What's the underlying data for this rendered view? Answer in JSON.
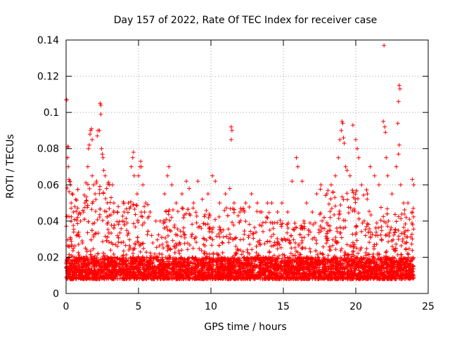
{
  "chart_data": {
    "type": "scatter",
    "title": "Day 157 of 2022, Rate Of TEC Index for receiver case",
    "xlabel": "GPS time / hours",
    "ylabel": "ROTI / TECUs",
    "xlim": [
      0,
      25
    ],
    "ylim": [
      0,
      0.14
    ],
    "xticks": [
      {
        "value": 0,
        "label": "0"
      },
      {
        "value": 5,
        "label": "5"
      },
      {
        "value": 10,
        "label": "10"
      },
      {
        "value": 15,
        "label": "15"
      },
      {
        "value": 20,
        "label": "20"
      },
      {
        "value": 25,
        "label": "25"
      }
    ],
    "yticks": [
      {
        "value": 0,
        "label": "0"
      },
      {
        "value": 0.02,
        "label": "0.02"
      },
      {
        "value": 0.04,
        "label": "0.04"
      },
      {
        "value": 0.06,
        "label": "0.06"
      },
      {
        "value": 0.08,
        "label": "0.08"
      },
      {
        "value": 0.1,
        "label": "0.1"
      },
      {
        "value": 0.12,
        "label": "0.12"
      },
      {
        "value": 0.14,
        "label": "0.14"
      }
    ],
    "grid": true,
    "marker": "+",
    "color": "#ff0000",
    "series": [
      {
        "name": "ROTI",
        "points": [
          [
            0.0,
            0.107
          ],
          [
            0.05,
            0.107
          ],
          [
            0.1,
            0.081
          ],
          [
            0.15,
            0.081
          ],
          [
            0.1,
            0.075
          ],
          [
            0.15,
            0.07
          ],
          [
            0.2,
            0.063
          ],
          [
            0.25,
            0.062
          ],
          [
            0.3,
            0.06
          ],
          [
            0.35,
            0.05
          ],
          [
            0.4,
            0.055
          ],
          [
            0.5,
            0.045
          ],
          [
            0.6,
            0.048
          ],
          [
            0.8,
            0.042
          ],
          [
            1.0,
            0.04
          ],
          [
            1.2,
            0.045
          ],
          [
            1.3,
            0.05
          ],
          [
            1.5,
            0.07
          ],
          [
            1.55,
            0.08
          ],
          [
            1.6,
            0.082
          ],
          [
            1.65,
            0.088
          ],
          [
            1.7,
            0.09
          ],
          [
            1.75,
            0.091
          ],
          [
            1.8,
            0.085
          ],
          [
            1.8,
            0.065
          ],
          [
            1.9,
            0.06
          ],
          [
            2.0,
            0.055
          ],
          [
            2.1,
            0.062
          ],
          [
            2.15,
            0.087
          ],
          [
            2.2,
            0.09
          ],
          [
            2.3,
            0.09
          ],
          [
            2.35,
            0.105
          ],
          [
            2.4,
            0.104
          ],
          [
            2.4,
            0.099
          ],
          [
            2.45,
            0.08
          ],
          [
            2.5,
            0.077
          ],
          [
            2.55,
            0.075
          ],
          [
            2.6,
            0.068
          ],
          [
            2.7,
            0.065
          ],
          [
            2.8,
            0.058
          ],
          [
            3.0,
            0.06
          ],
          [
            3.2,
            0.06
          ],
          [
            3.3,
            0.05
          ],
          [
            3.6,
            0.048
          ],
          [
            4.0,
            0.045
          ],
          [
            4.3,
            0.05
          ],
          [
            4.5,
            0.07
          ],
          [
            4.6,
            0.075
          ],
          [
            4.65,
            0.078
          ],
          [
            4.7,
            0.065
          ],
          [
            4.9,
            0.055
          ],
          [
            5.0,
            0.065
          ],
          [
            5.1,
            0.07
          ],
          [
            5.15,
            0.073
          ],
          [
            5.2,
            0.07
          ],
          [
            5.3,
            0.06
          ],
          [
            5.5,
            0.05
          ],
          [
            5.8,
            0.045
          ],
          [
            6.2,
            0.04
          ],
          [
            6.5,
            0.04
          ],
          [
            6.8,
            0.055
          ],
          [
            7.0,
            0.065
          ],
          [
            7.1,
            0.07
          ],
          [
            7.3,
            0.06
          ],
          [
            7.6,
            0.05
          ],
          [
            8.0,
            0.055
          ],
          [
            8.3,
            0.062
          ],
          [
            8.5,
            0.058
          ],
          [
            8.8,
            0.05
          ],
          [
            9.1,
            0.062
          ],
          [
            9.4,
            0.052
          ],
          [
            9.8,
            0.055
          ],
          [
            10.1,
            0.065
          ],
          [
            10.3,
            0.062
          ],
          [
            10.6,
            0.05
          ],
          [
            11.0,
            0.055
          ],
          [
            11.3,
            0.058
          ],
          [
            11.4,
            0.092
          ],
          [
            11.45,
            0.09
          ],
          [
            11.4,
            0.085
          ],
          [
            11.6,
            0.05
          ],
          [
            12.0,
            0.045
          ],
          [
            12.4,
            0.05
          ],
          [
            12.8,
            0.055
          ],
          [
            13.2,
            0.05
          ],
          [
            13.5,
            0.045
          ],
          [
            13.9,
            0.05
          ],
          [
            14.2,
            0.05
          ],
          [
            14.6,
            0.045
          ],
          [
            14.9,
            0.05
          ],
          [
            15.3,
            0.045
          ],
          [
            15.6,
            0.062
          ],
          [
            15.9,
            0.075
          ],
          [
            16.0,
            0.07
          ],
          [
            16.3,
            0.062
          ],
          [
            16.6,
            0.05
          ],
          [
            17.0,
            0.045
          ],
          [
            17.3,
            0.055
          ],
          [
            17.6,
            0.06
          ],
          [
            18.0,
            0.055
          ],
          [
            18.3,
            0.06
          ],
          [
            18.6,
            0.065
          ],
          [
            18.8,
            0.075
          ],
          [
            18.9,
            0.085
          ],
          [
            19.0,
            0.09
          ],
          [
            19.05,
            0.095
          ],
          [
            19.1,
            0.094
          ],
          [
            19.15,
            0.086
          ],
          [
            19.2,
            0.083
          ],
          [
            19.3,
            0.07
          ],
          [
            19.4,
            0.068
          ],
          [
            19.6,
            0.065
          ],
          [
            19.8,
            0.093
          ],
          [
            20.0,
            0.085
          ],
          [
            20.1,
            0.08
          ],
          [
            20.2,
            0.075
          ],
          [
            20.4,
            0.06
          ],
          [
            20.8,
            0.055
          ],
          [
            21.0,
            0.07
          ],
          [
            21.3,
            0.065
          ],
          [
            21.6,
            0.06
          ],
          [
            21.9,
            0.095
          ],
          [
            21.95,
            0.137
          ],
          [
            22.0,
            0.092
          ],
          [
            22.05,
            0.089
          ],
          [
            22.1,
            0.075
          ],
          [
            22.2,
            0.065
          ],
          [
            22.5,
            0.055
          ],
          [
            22.8,
            0.07
          ],
          [
            22.9,
            0.094
          ],
          [
            22.95,
            0.106
          ],
          [
            23.0,
            0.115
          ],
          [
            23.05,
            0.113
          ],
          [
            23.0,
            0.082
          ],
          [
            22.95,
            0.077
          ],
          [
            23.1,
            0.06
          ],
          [
            23.3,
            0.05
          ],
          [
            23.6,
            0.05
          ],
          [
            23.9,
            0.063
          ],
          [
            24.0,
            0.06
          ]
        ]
      }
    ]
  }
}
